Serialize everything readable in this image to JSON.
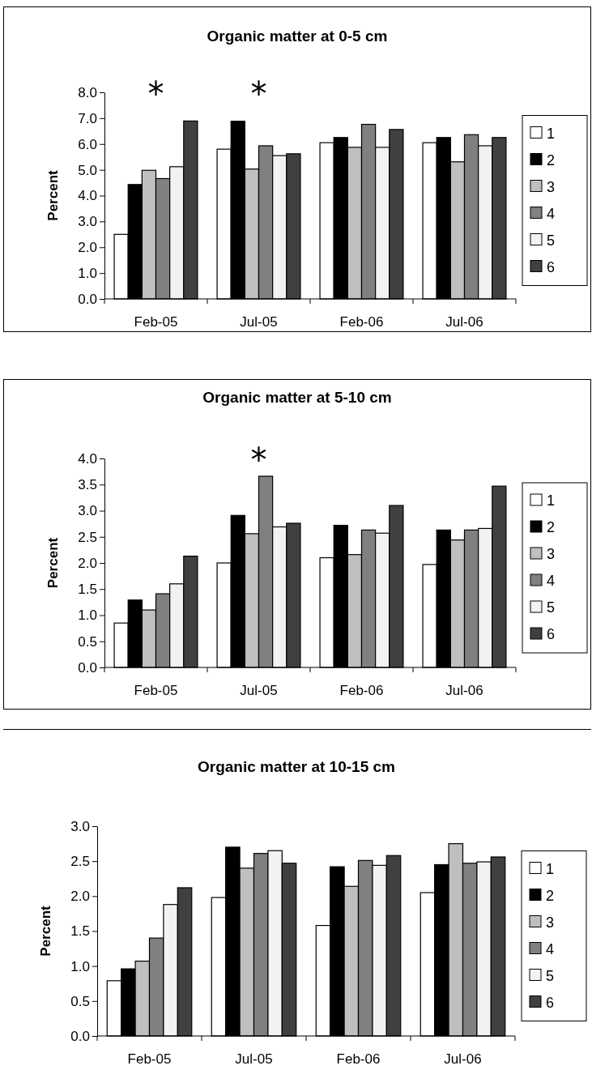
{
  "chart_data": [
    {
      "type": "bar",
      "title": "Organic matter at 0-5 cm",
      "ylabel": "Percent",
      "categories": [
        "Feb-05",
        "Jul-05",
        "Feb-06",
        "Jul-06"
      ],
      "series": [
        {
          "name": "1",
          "color": "#ffffff",
          "values": [
            2.5,
            5.8,
            6.05,
            6.05
          ]
        },
        {
          "name": "2",
          "color": "#000000",
          "values": [
            4.43,
            6.88,
            6.25,
            6.25
          ]
        },
        {
          "name": "3",
          "color": "#bfbfbf",
          "values": [
            4.98,
            5.03,
            5.87,
            5.31
          ]
        },
        {
          "name": "4",
          "color": "#808080",
          "values": [
            4.66,
            5.93,
            6.76,
            6.36
          ]
        },
        {
          "name": "5",
          "color": "#f2f2f2",
          "values": [
            5.12,
            5.55,
            5.87,
            5.93
          ]
        },
        {
          "name": "6",
          "color": "#404040",
          "values": [
            6.89,
            5.62,
            6.56,
            6.25
          ]
        }
      ],
      "ylim": [
        0,
        8
      ],
      "yticks": [
        {
          "value": 0,
          "label": "0.0"
        },
        {
          "value": 1,
          "label": "1.0"
        },
        {
          "value": 2,
          "label": "2.0"
        },
        {
          "value": 3,
          "label": "3.0"
        },
        {
          "value": 4,
          "label": "4.0"
        },
        {
          "value": 5,
          "label": "5.0"
        },
        {
          "value": 6,
          "label": "6.0"
        },
        {
          "value": 7,
          "label": "7.0"
        },
        {
          "value": 8,
          "label": "8.0"
        }
      ],
      "legend": "right",
      "grid": false,
      "annotations": [
        "*",
        "*"
      ]
    },
    {
      "type": "bar",
      "title": "Organic matter at 5-10 cm",
      "ylabel": "Percent",
      "categories": [
        "Feb-05",
        "Jul-05",
        "Feb-06",
        "Jul-06"
      ],
      "series": [
        {
          "name": "1",
          "color": "#ffffff",
          "values": [
            0.85,
            2.0,
            2.1,
            1.97
          ]
        },
        {
          "name": "2",
          "color": "#000000",
          "values": [
            1.29,
            2.91,
            2.72,
            2.63
          ]
        },
        {
          "name": "3",
          "color": "#bfbfbf",
          "values": [
            1.1,
            2.56,
            2.16,
            2.44
          ]
        },
        {
          "name": "4",
          "color": "#808080",
          "values": [
            1.41,
            3.66,
            2.63,
            2.63
          ]
        },
        {
          "name": "5",
          "color": "#f2f2f2",
          "values": [
            1.6,
            2.69,
            2.57,
            2.66
          ]
        },
        {
          "name": "6",
          "color": "#404040",
          "values": [
            2.13,
            2.76,
            3.1,
            3.47
          ]
        }
      ],
      "ylim": [
        0,
        4
      ],
      "yticks": [
        {
          "value": 0,
          "label": "0.0"
        },
        {
          "value": 0.5,
          "label": "0.5"
        },
        {
          "value": 1,
          "label": "1.0"
        },
        {
          "value": 1.5,
          "label": "1.5"
        },
        {
          "value": 2,
          "label": "2.0"
        },
        {
          "value": 2.5,
          "label": "2.5"
        },
        {
          "value": 3,
          "label": "3.0"
        },
        {
          "value": 3.5,
          "label": "3.5"
        },
        {
          "value": 4,
          "label": "4.0"
        }
      ],
      "legend": "right",
      "grid": false,
      "annotations": [
        "*"
      ]
    },
    {
      "type": "bar",
      "title": "Organic matter at 10-15 cm",
      "ylabel": "Percent",
      "categories": [
        "Feb-05",
        "Jul-05",
        "Feb-06",
        "Jul-06"
      ],
      "series": [
        {
          "name": "1",
          "color": "#ffffff",
          "values": [
            0.79,
            1.98,
            1.58,
            2.05
          ]
        },
        {
          "name": "2",
          "color": "#000000",
          "values": [
            0.96,
            2.7,
            2.42,
            2.45
          ]
        },
        {
          "name": "3",
          "color": "#bfbfbf",
          "values": [
            1.07,
            2.4,
            2.14,
            2.75
          ]
        },
        {
          "name": "4",
          "color": "#808080",
          "values": [
            1.4,
            2.61,
            2.51,
            2.47
          ]
        },
        {
          "name": "5",
          "color": "#f2f2f2",
          "values": [
            1.88,
            2.65,
            2.44,
            2.49
          ]
        },
        {
          "name": "6",
          "color": "#404040",
          "values": [
            2.12,
            2.47,
            2.58,
            2.56
          ]
        }
      ],
      "ylim": [
        0,
        3
      ],
      "yticks": [
        {
          "value": 0,
          "label": "0.0"
        },
        {
          "value": 0.5,
          "label": "0.5"
        },
        {
          "value": 1,
          "label": "1.0"
        },
        {
          "value": 1.5,
          "label": "1.5"
        },
        {
          "value": 2,
          "label": "2.0"
        },
        {
          "value": 2.5,
          "label": "2.5"
        },
        {
          "value": 3,
          "label": "3.0"
        }
      ],
      "legend": "right",
      "grid": false
    }
  ]
}
